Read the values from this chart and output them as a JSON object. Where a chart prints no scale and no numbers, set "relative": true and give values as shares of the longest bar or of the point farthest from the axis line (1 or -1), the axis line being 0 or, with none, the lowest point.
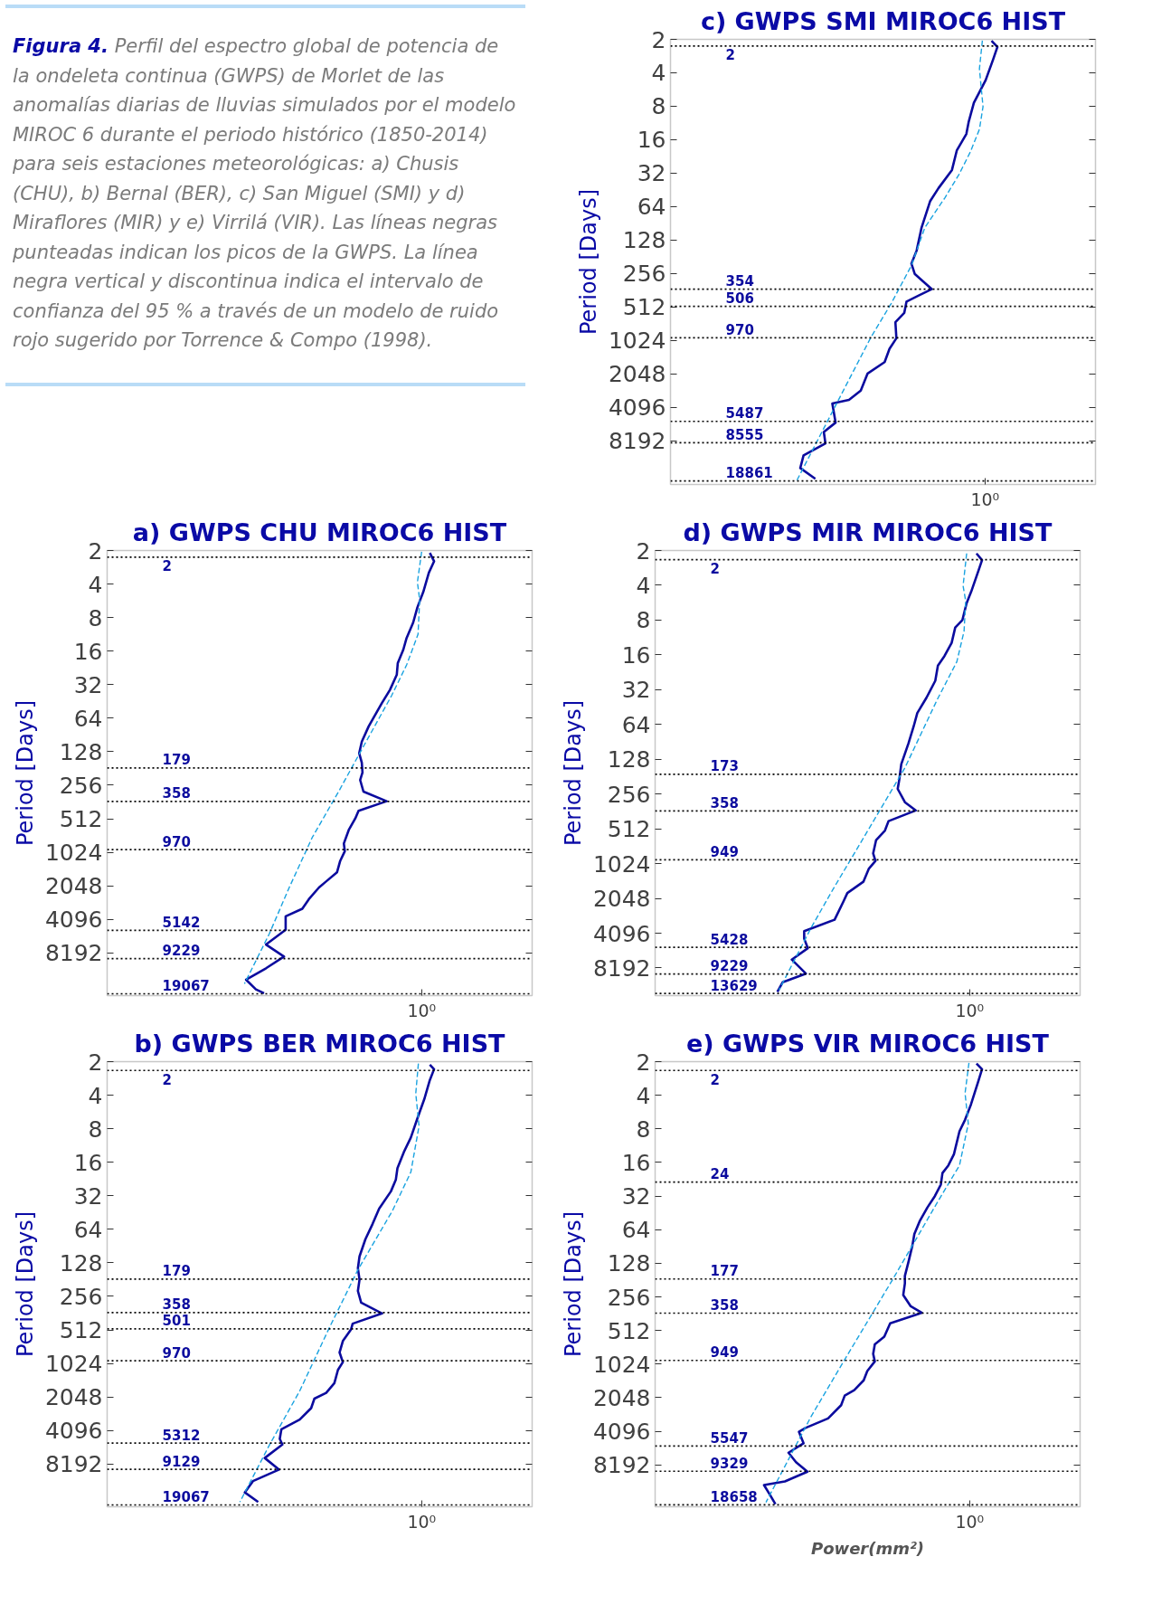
{
  "chart_data": [
    {
      "type": "other",
      "title": "Figura 4.",
      "annotations": [
        "Perfil del espectro global de potencia de la ondeleta continua (GWPS) de Morlet de las anomalías diarias de lluvias simulados por el modelo MIROC 6 durante el periodo histórico (1850-2014) para seis estaciones meteorológicas: a) Chusis (CHU), b) Bernal (BER), c) San Miguel (SMI) y d) Miraflores (MIR) y e) Virrilá (VIR). Las líneas negras punteadas indican los picos de la GWPS. La línea negra vertical y discontinua indica el intervalo de confianza del 95 % a través de un modelo de ruido rojo sugerido por Torrence & Compo (1998)."
      ]
    },
    {
      "type": "line",
      "orientation": "horizontal",
      "title": "c) GWPS SMI MIROC6 HIST",
      "ylabel": "Period [Days]",
      "log": "y",
      "relative": true,
      "ylim": [
        20300,
        2
      ],
      "annotations": [
        "10⁰"
      ],
      "yticks": [
        2,
        4,
        8,
        16,
        32,
        64,
        128,
        256,
        512,
        1024,
        2048,
        4096,
        8192
      ],
      "series": [
        {
          "color": "#0b0b9e",
          "values": [
            0.982,
            1,
            0.987,
            0.964,
            0.928,
            0.912,
            0.905,
            0.876,
            0.861,
            0.82,
            0.794,
            0.768,
            0.753,
            0.737,
            0.747,
            0.799,
            0.722,
            0.715,
            0.688,
            0.691,
            0.67,
            0.655,
            0.603,
            0.582,
            0.546,
            0.495,
            0.505,
            0.469,
            0.474,
            0.407,
            0.397,
            0.443
          ],
          "x": [
            2.06,
            2.34,
            3.03,
            4.66,
            7.46,
            11.1,
            14.2,
            19.9,
            30,
            43.6,
            57.4,
            99,
            159,
            209,
            258,
            354,
            458,
            580,
            704,
            980,
            1218,
            1607,
            2034,
            2896,
            3517,
            3795,
            5632,
            6840,
            8660,
            11120,
            14450,
            18050
          ]
        },
        {
          "color": "#1aa3e0",
          "line_style": "dashed",
          "values": [
            0.954,
            0.945,
            0.956,
            0.945,
            0.917,
            0.882,
            0.84,
            0.778,
            0.737,
            0.675,
            0.613,
            0.541,
            0.469,
            0.387
          ],
          "x": [
            2.05,
            3.68,
            8.06,
            12.9,
            20.7,
            33.1,
            53,
            99,
            217,
            478,
            962,
            2470,
            6340,
            18560
          ]
        }
      ],
      "ref_lines": [
        {
          "axis": "y",
          "value": 2.3,
          "label": "2",
          "color": "#000000",
          "line_style": "dotted"
        },
        {
          "axis": "y",
          "value": 354,
          "label": "354",
          "color": "#000000",
          "line_style": "dotted"
        },
        {
          "axis": "y",
          "value": 506,
          "label": "506",
          "color": "#000000",
          "line_style": "dotted"
        },
        {
          "axis": "y",
          "value": 970,
          "label": "970",
          "color": "#000000",
          "line_style": "dotted"
        },
        {
          "axis": "y",
          "value": 5487,
          "label": "5487",
          "color": "#000000",
          "line_style": "dotted"
        },
        {
          "axis": "y",
          "value": 8555,
          "label": "8555",
          "color": "#000000",
          "line_style": "dotted"
        },
        {
          "axis": "y",
          "value": 18861,
          "label": "18861",
          "color": "#000000",
          "line_style": "dotted"
        }
      ]
    },
    {
      "type": "line",
      "orientation": "horizontal",
      "title": "a) GWPS CHU MIROC6 HIST",
      "ylabel": "Period [Days]",
      "log": "y",
      "relative": true,
      "ylim": [
        19800,
        2
      ],
      "annotations": [
        "10⁰"
      ],
      "yticks": [
        2,
        4,
        8,
        16,
        32,
        64,
        128,
        256,
        512,
        1024,
        2048,
        4096,
        8192
      ],
      "series": [
        {
          "color": "#0b0b9e",
          "values": [
            0.987,
            1,
            0.984,
            0.967,
            0.949,
            0.936,
            0.916,
            0.906,
            0.889,
            0.886,
            0.865,
            0.84,
            0.8,
            0.779,
            0.771,
            0.779,
            0.781,
            0.774,
            0.784,
            0.855,
            0.769,
            0.759,
            0.739,
            0.724,
            0.727,
            0.713,
            0.703,
            0.668,
            0.648,
            0.617,
            0.597,
            0.546,
            0.546,
            0.486,
            0.541,
            0.486,
            0.425,
            0.455,
            0.48
          ],
          "x": [
            2.1,
            2.5,
            3.17,
            4.71,
            6.48,
            8.89,
            12.2,
            15.5,
            20.5,
            26,
            35.7,
            47.1,
            75.8,
            104,
            132,
            161,
            197,
            230,
            292,
            356,
            435,
            509,
            646,
            853,
            1000,
            1220,
            1550,
            1890,
            2120,
            2700,
            3290,
            3850,
            5080,
            6890,
            8850,
            11250,
            14270,
            17400,
            18830
          ]
        },
        {
          "color": "#1aa3e0",
          "line_style": "dashed",
          "values": [
            0.962,
            0.949,
            0.956,
            0.951,
            0.916,
            0.87,
            0.779,
            0.708,
            0.627,
            0.557,
            0.496,
            0.42
          ],
          "x": [
            2.05,
            3.86,
            5.53,
            11.3,
            21.3,
            40.2,
            122,
            292,
            757,
            2120,
            5520,
            15500
          ]
        }
      ],
      "ref_lines": [
        {
          "axis": "y",
          "value": 2.3,
          "label": "2",
          "color": "#000000",
          "line_style": "dotted"
        },
        {
          "axis": "y",
          "value": 179,
          "label": "179",
          "color": "#000000",
          "line_style": "dotted"
        },
        {
          "axis": "y",
          "value": 358,
          "label": "358",
          "color": "#000000",
          "line_style": "dotted"
        },
        {
          "axis": "y",
          "value": 970,
          "label": "970",
          "color": "#000000",
          "line_style": "dotted"
        },
        {
          "axis": "y",
          "value": 5142,
          "label": "5142",
          "color": "#000000",
          "line_style": "dotted"
        },
        {
          "axis": "y",
          "value": 9229,
          "label": "9229",
          "color": "#000000",
          "line_style": "dotted"
        },
        {
          "axis": "y",
          "value": 19067,
          "label": "19067",
          "color": "#000000",
          "line_style": "dotted"
        }
      ]
    },
    {
      "type": "line",
      "orientation": "horizontal",
      "title": "d) GWPS MIR MIROC6 HIST",
      "ylabel": "Period [Days]",
      "log": "y",
      "relative": true,
      "ylim": [
        14200,
        2
      ],
      "annotations": [
        "10⁰"
      ],
      "yticks": [
        2,
        4,
        8,
        16,
        32,
        64,
        128,
        256,
        512,
        1024,
        2048,
        4096,
        8192
      ],
      "series": [
        {
          "color": "#0b0b9e",
          "values": [
            0.983,
            1,
            0.989,
            0.967,
            0.953,
            0.94,
            0.918,
            0.907,
            0.885,
            0.865,
            0.857,
            0.83,
            0.802,
            0.791,
            0.775,
            0.753,
            0.747,
            0.742,
            0.764,
            0.797,
            0.714,
            0.703,
            0.676,
            0.667,
            0.674,
            0.654,
            0.637,
            0.588,
            0.577,
            0.549,
            0.456,
            0.456,
            0.467,
            0.418,
            0.461,
            0.39,
            0.374
          ],
          "x": [
            2.12,
            2.42,
            2.99,
            4.53,
            5.68,
            7.98,
            9.28,
            12.6,
            16.4,
            19.8,
            26.8,
            37.6,
            50.9,
            66.3,
            93.2,
            141,
            191,
            231,
            301,
            355,
            439,
            530,
            640,
            835,
            971,
            1130,
            1470,
            1840,
            2150,
            3130,
            3930,
            4570,
            5520,
            6930,
            9160,
            10900,
            13200
          ]
        },
        {
          "color": "#1aa3e0",
          "line_style": "dashed",
          "values": [
            0.953,
            0.942,
            0.95,
            0.945,
            0.923,
            0.863,
            0.764,
            0.654,
            0.544,
            0.478,
            0.379
          ],
          "x": [
            2.12,
            4.04,
            5.47,
            10.0,
            18.3,
            39.0,
            152,
            511,
            1710,
            3640,
            12700
          ]
        }
      ],
      "ref_lines": [
        {
          "axis": "y",
          "value": 2.4,
          "label": "2",
          "color": "#000000",
          "line_style": "dotted"
        },
        {
          "axis": "y",
          "value": 173,
          "label": "173",
          "color": "#000000",
          "line_style": "dotted"
        },
        {
          "axis": "y",
          "value": 358,
          "label": "358",
          "color": "#000000",
          "line_style": "dotted"
        },
        {
          "axis": "y",
          "value": 949,
          "label": "949",
          "color": "#000000",
          "line_style": "dotted"
        },
        {
          "axis": "y",
          "value": 5428,
          "label": "5428",
          "color": "#000000",
          "line_style": "dotted"
        },
        {
          "axis": "y",
          "value": 9229,
          "label": "9229",
          "color": "#000000",
          "line_style": "dotted"
        },
        {
          "axis": "y",
          "value": 13629,
          "label": "13629",
          "color": "#000000",
          "line_style": "dotted"
        }
      ]
    },
    {
      "type": "line",
      "orientation": "horizontal",
      "title": "b) GWPS BER MIROC6 HIST",
      "ylabel": "Period [Days]",
      "log": "y",
      "relative": true,
      "ylim": [
        19800,
        2
      ],
      "annotations": [
        "10⁰"
      ],
      "yticks": [
        2,
        4,
        8,
        16,
        32,
        64,
        128,
        256,
        512,
        1024,
        2048,
        4096,
        8192
      ],
      "series": [
        {
          "color": "#0b0b9e",
          "values": [
            0.987,
            1,
            0.987,
            0.97,
            0.949,
            0.929,
            0.909,
            0.888,
            0.883,
            0.868,
            0.832,
            0.812,
            0.79,
            0.772,
            0.767,
            0.772,
            0.767,
            0.777,
            0.841,
            0.751,
            0.746,
            0.721,
            0.711,
            0.721,
            0.706,
            0.695,
            0.67,
            0.634,
            0.624,
            0.589,
            0.533,
            0.528,
            0.536,
            0.482,
            0.526,
            0.446,
            0.421,
            0.462
          ],
          "x": [
            2.13,
            2.34,
            2.93,
            4.35,
            6.47,
            9.61,
            12.7,
            18.1,
            23,
            29.2,
            41.7,
            57.2,
            78.5,
            112,
            143,
            181,
            229,
            291,
            364,
            450,
            507,
            644,
            816,
            995,
            1170,
            1540,
            1880,
            2120,
            2580,
            3270,
            3990,
            4870,
            5480,
            7230,
            9180,
            11650,
            14730,
            17960
          ]
        },
        {
          "color": "#1aa3e0",
          "line_style": "dashed",
          "values": [
            0.952,
            0.944,
            0.954,
            0.929,
            0.873,
            0.767,
            0.68,
            0.589,
            0.497,
            0.406
          ],
          "x": [
            2.08,
            3.86,
            7.58,
            19.6,
            43.4,
            148,
            487,
            1810,
            5480,
            17960
          ]
        }
      ],
      "ref_lines": [
        {
          "axis": "y",
          "value": 2.4,
          "label": "2",
          "color": "#000000",
          "line_style": "dotted"
        },
        {
          "axis": "y",
          "value": 179,
          "label": "179",
          "color": "#000000",
          "line_style": "dotted"
        },
        {
          "axis": "y",
          "value": 358,
          "label": "358",
          "color": "#000000",
          "line_style": "dotted"
        },
        {
          "axis": "y",
          "value": 501,
          "label": "501",
          "color": "#000000",
          "line_style": "dotted"
        },
        {
          "axis": "y",
          "value": 970,
          "label": "970",
          "color": "#000000",
          "line_style": "dotted"
        },
        {
          "axis": "y",
          "value": 5312,
          "label": "5312",
          "color": "#000000",
          "line_style": "dotted"
        },
        {
          "axis": "y",
          "value": 9129,
          "label": "9129",
          "color": "#000000",
          "line_style": "dotted"
        },
        {
          "axis": "y",
          "value": 19067,
          "label": "19067",
          "color": "#000000",
          "line_style": "dotted"
        }
      ]
    },
    {
      "type": "line",
      "orientation": "horizontal",
      "title": "e) GWPS VIR MIROC6 HIST",
      "ylabel": "Period [Days]",
      "xlabel": "Power(mm²)",
      "log": "y",
      "relative": true,
      "ylim": [
        19400,
        2
      ],
      "annotations": [
        "10⁰"
      ],
      "yticks": [
        2,
        4,
        8,
        16,
        32,
        64,
        128,
        256,
        512,
        1024,
        2048,
        4096,
        8192
      ],
      "series": [
        {
          "color": "#0b0b9e",
          "values": [
            0.983,
            1,
            0.988,
            0.966,
            0.948,
            0.931,
            0.914,
            0.897,
            0.879,
            0.874,
            0.856,
            0.833,
            0.81,
            0.793,
            0.787,
            0.776,
            0.764,
            0.764,
            0.759,
            0.782,
            0.816,
            0.719,
            0.701,
            0.672,
            0.667,
            0.672,
            0.649,
            0.638,
            0.609,
            0.58,
            0.569,
            0.529,
            0.46,
            0.44,
            0.454,
            0.408,
            0.431,
            0.466,
            0.397,
            0.333,
            0.351,
            0.368
          ],
          "x": [
            2.08,
            2.34,
            3.03,
            4.85,
            6.64,
            8.41,
            13.5,
            17.0,
            19.9,
            25.2,
            31.9,
            40.4,
            53.2,
            70,
            88.5,
            121,
            166,
            194,
            246,
            311,
            355,
            442,
            582,
            681,
            829,
            969,
            1180,
            1430,
            1750,
            1960,
            2390,
            3140,
            3820,
            4140,
            5240,
            6360,
            7750,
            9420,
            11500,
            12400,
            15100,
            18400
          ]
        },
        {
          "color": "#1aa3e0",
          "line_style": "dashed",
          "values": [
            0.96,
            0.948,
            0.958,
            0.931,
            0.868,
            0.73,
            0.58,
            0.477,
            0.339
          ],
          "x": [
            2.05,
            3.84,
            7.19,
            17.0,
            34.5,
            172,
            932,
            3020,
            17700
          ]
        }
      ],
      "ref_lines": [
        {
          "axis": "y",
          "value": 2.4,
          "label": "2",
          "color": "#000000",
          "line_style": "dotted"
        },
        {
          "axis": "y",
          "value": 24,
          "label": "24",
          "color": "#000000",
          "line_style": "dotted"
        },
        {
          "axis": "y",
          "value": 177,
          "label": "177",
          "color": "#000000",
          "line_style": "dotted"
        },
        {
          "axis": "y",
          "value": 358,
          "label": "358",
          "color": "#000000",
          "line_style": "dotted"
        },
        {
          "axis": "y",
          "value": 949,
          "label": "949",
          "color": "#000000",
          "line_style": "dotted"
        },
        {
          "axis": "y",
          "value": 5547,
          "label": "5547",
          "color": "#000000",
          "line_style": "dotted"
        },
        {
          "axis": "y",
          "value": 9329,
          "label": "9329",
          "color": "#000000",
          "line_style": "dotted"
        },
        {
          "axis": "y",
          "value": 18658,
          "label": "18658",
          "color": "#000000",
          "line_style": "dotted"
        }
      ]
    }
  ]
}
